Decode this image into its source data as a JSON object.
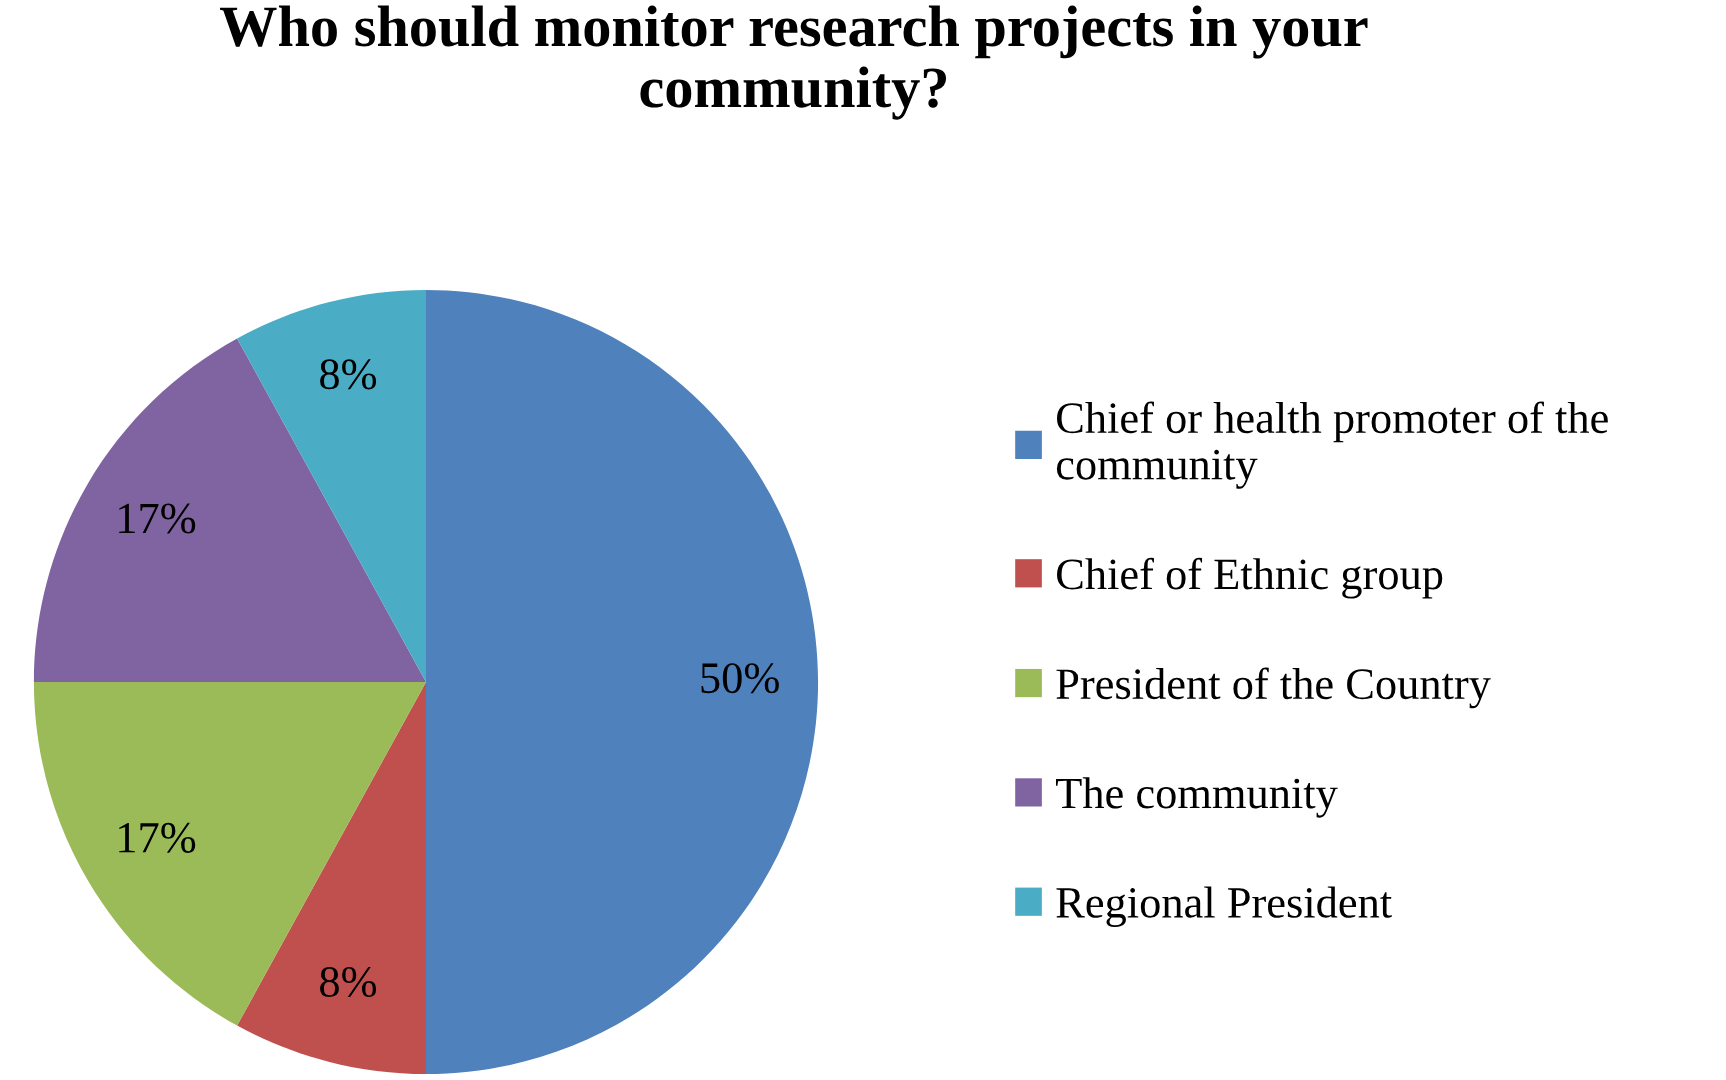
{
  "chart_data": {
    "type": "pie",
    "title": "Who should monitor research projects in your community?",
    "categories": [
      "Chief or health promoter of the community",
      "Chief of Ethnic group",
      "President of the Country",
      "The community",
      "Regional President"
    ],
    "values": [
      50,
      8,
      17,
      17,
      8
    ],
    "colors": [
      "#4f81bd",
      "#c0504d",
      "#9bbb59",
      "#8064a2",
      "#4bacc6"
    ],
    "value_labels": [
      "50%",
      "8%",
      "17%",
      "17%",
      "8%"
    ],
    "legend": "right"
  }
}
